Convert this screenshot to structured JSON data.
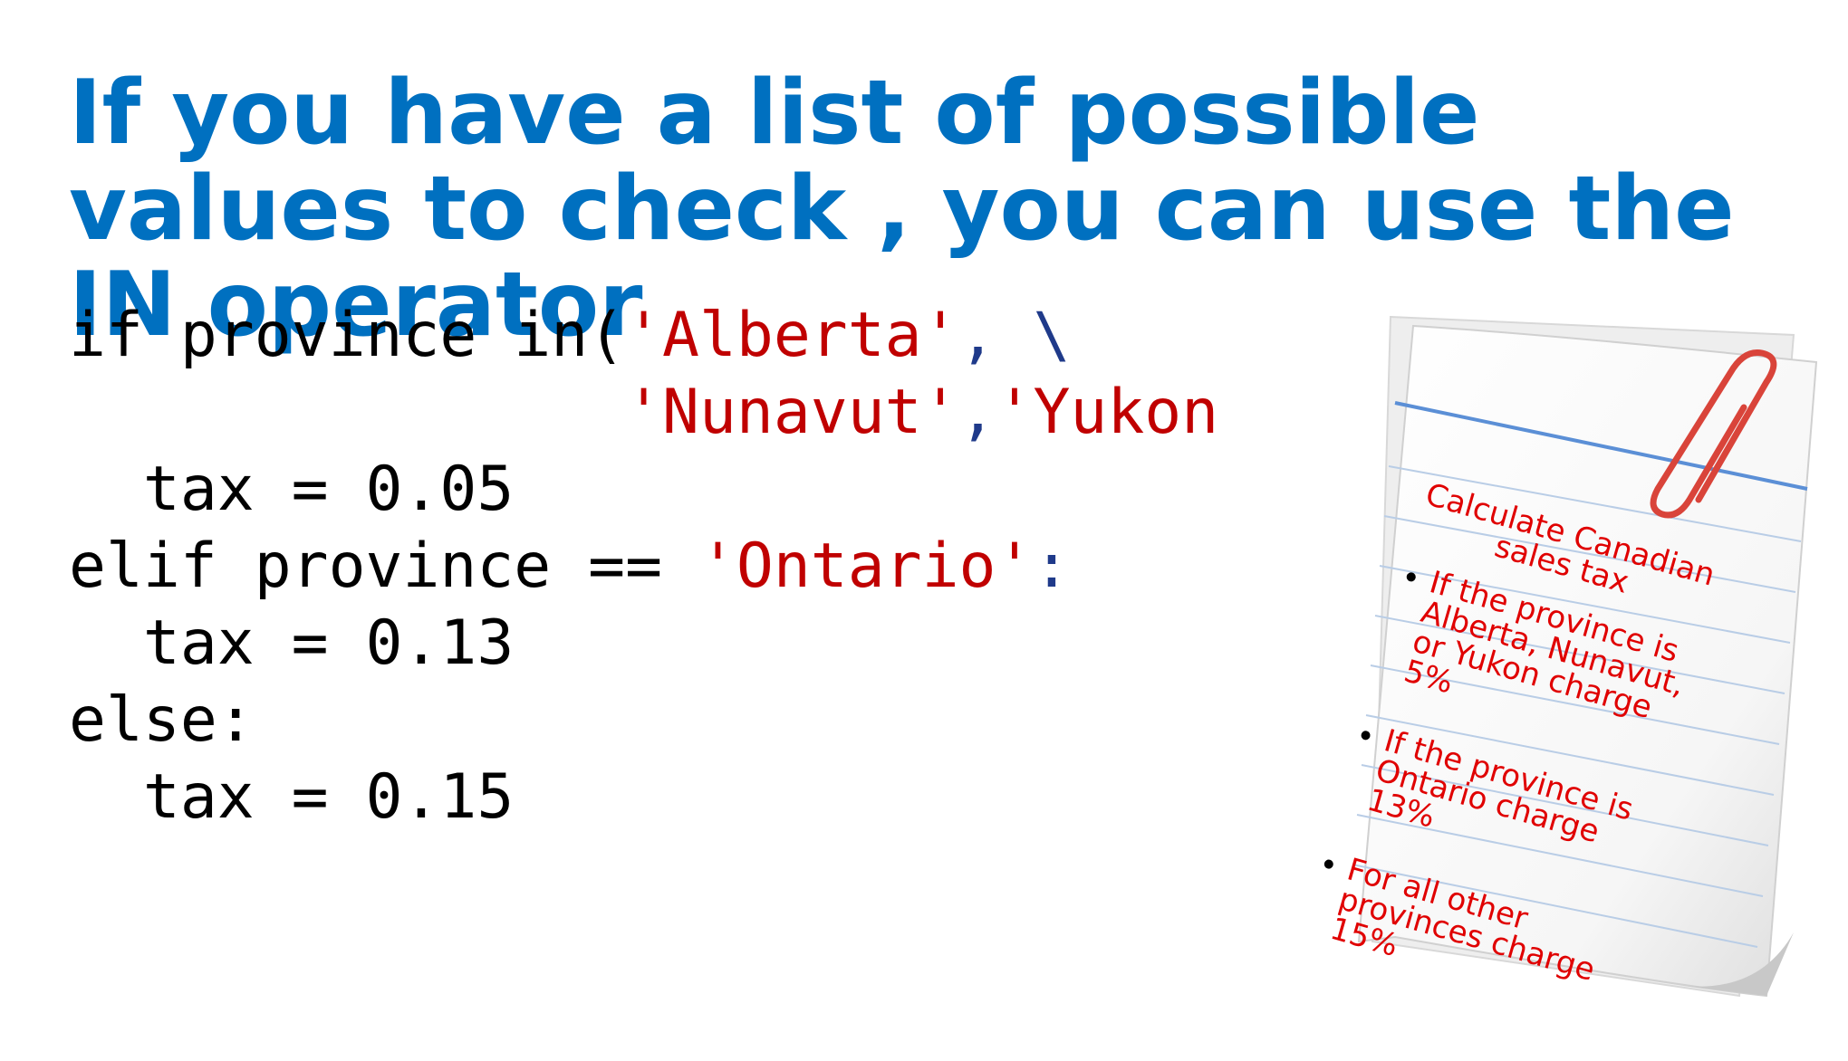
{
  "slide": {
    "title": "If you have a list of possible values to check , you can use the IN operator"
  },
  "code": {
    "line1_kw": "if province in(",
    "line1_str": "'Alberta'",
    "line1_tail": ", \\",
    "line2_indent": "               ",
    "line2_str1": "'Nunavut'",
    "line2_sep": ",",
    "line2_str2": "'Yukon",
    "line3": "  tax = 0.05",
    "line4_kw": "elif province == ",
    "line4_str": "'Ontario'",
    "line4_tail": ":",
    "line5": "  tax = 0.13",
    "line6": "else:",
    "line7": "  tax = 0.15"
  },
  "note": {
    "heading": "Calculate Canadian sales tax",
    "items": [
      "If the province is Alberta, Nunavut, or Yukon charge 5%",
      "If the province is Ontario charge 13%",
      "For all other provinces charge 15%"
    ],
    "icons": [
      "paperclip-icon",
      "lined-paper-note"
    ]
  }
}
